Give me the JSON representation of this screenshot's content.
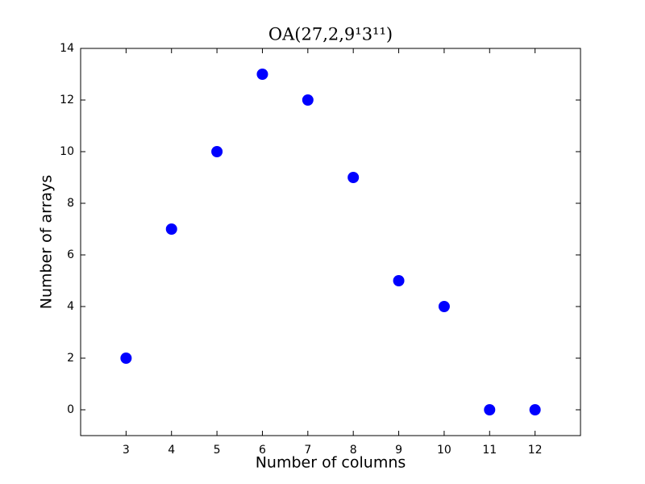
{
  "chart_data": {
    "type": "scatter",
    "title": "OA(27,2,9¹3¹¹)",
    "x_label": "Number of columns",
    "y_label": "Number of arrays",
    "x": [
      3,
      4,
      5,
      6,
      7,
      8,
      9,
      10,
      11,
      12
    ],
    "values": [
      2,
      7,
      10,
      13,
      12,
      9,
      5,
      4,
      0,
      0
    ],
    "color": "#0000ff",
    "xlim": [
      2,
      13
    ],
    "xticks": [
      3,
      4,
      5,
      6,
      7,
      8,
      9,
      10,
      11,
      12
    ],
    "ylim": [
      -1,
      14
    ],
    "yticks": [
      0,
      2,
      4,
      6,
      8,
      10,
      12,
      14
    ],
    "grid": false
  }
}
